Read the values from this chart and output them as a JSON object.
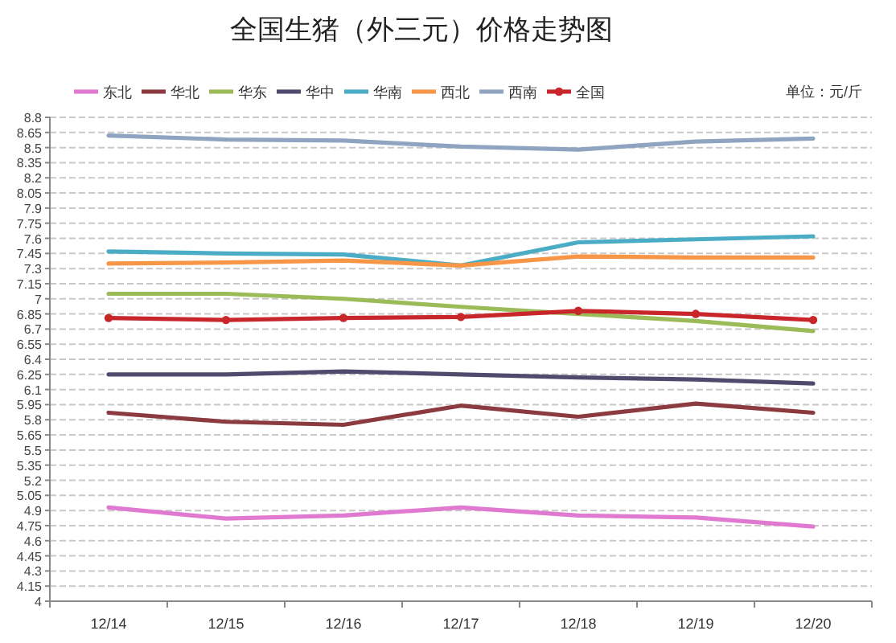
{
  "chart_data": {
    "type": "line",
    "title": "全国生猪（外三元）价格走势图",
    "annotations": [
      "单位：元/斤"
    ],
    "categories": [
      "12/14",
      "12/15",
      "12/16",
      "12/17",
      "12/18",
      "12/19",
      "12/20"
    ],
    "ylim": [
      4,
      8.8
    ],
    "yticks": [
      4,
      4.15,
      4.3,
      4.45,
      4.6,
      4.75,
      4.9,
      5.05,
      5.2,
      5.35,
      5.5,
      5.65,
      5.8,
      5.95,
      6.1,
      6.25,
      6.4,
      6.55,
      6.7,
      6.85,
      7,
      7.15,
      7.3,
      7.45,
      7.6,
      7.75,
      7.9,
      8.05,
      8.2,
      8.35,
      8.5,
      8.65,
      8.8
    ],
    "grid": "y",
    "legend": "top",
    "line_style": "solid",
    "series": [
      {
        "name": "东北",
        "color": "#e07ad0",
        "values": [
          4.93,
          4.82,
          4.85,
          4.93,
          4.85,
          4.83,
          4.74
        ]
      },
      {
        "name": "华北",
        "color": "#8b3a3f",
        "values": [
          5.87,
          5.78,
          5.75,
          5.94,
          5.83,
          5.96,
          5.87
        ]
      },
      {
        "name": "华东",
        "color": "#9bbb59",
        "values": [
          7.05,
          7.05,
          7.0,
          6.92,
          6.85,
          6.78,
          6.68
        ]
      },
      {
        "name": "华中",
        "color": "#4f4b6e",
        "values": [
          6.25,
          6.25,
          6.28,
          6.25,
          6.22,
          6.2,
          6.16
        ]
      },
      {
        "name": "华南",
        "color": "#4bacc6",
        "values": [
          7.47,
          7.45,
          7.44,
          7.33,
          7.56,
          7.59,
          7.62
        ]
      },
      {
        "name": "西北",
        "color": "#f79646",
        "values": [
          7.35,
          7.36,
          7.38,
          7.33,
          7.42,
          7.41,
          7.41
        ]
      },
      {
        "name": "西南",
        "color": "#8ea4c0",
        "values": [
          8.62,
          8.58,
          8.57,
          8.51,
          8.48,
          8.56,
          8.59
        ]
      },
      {
        "name": "全国",
        "color": "#c8262a",
        "marker": "circle",
        "values": [
          6.81,
          6.79,
          6.81,
          6.82,
          6.88,
          6.85,
          6.79
        ]
      }
    ]
  }
}
